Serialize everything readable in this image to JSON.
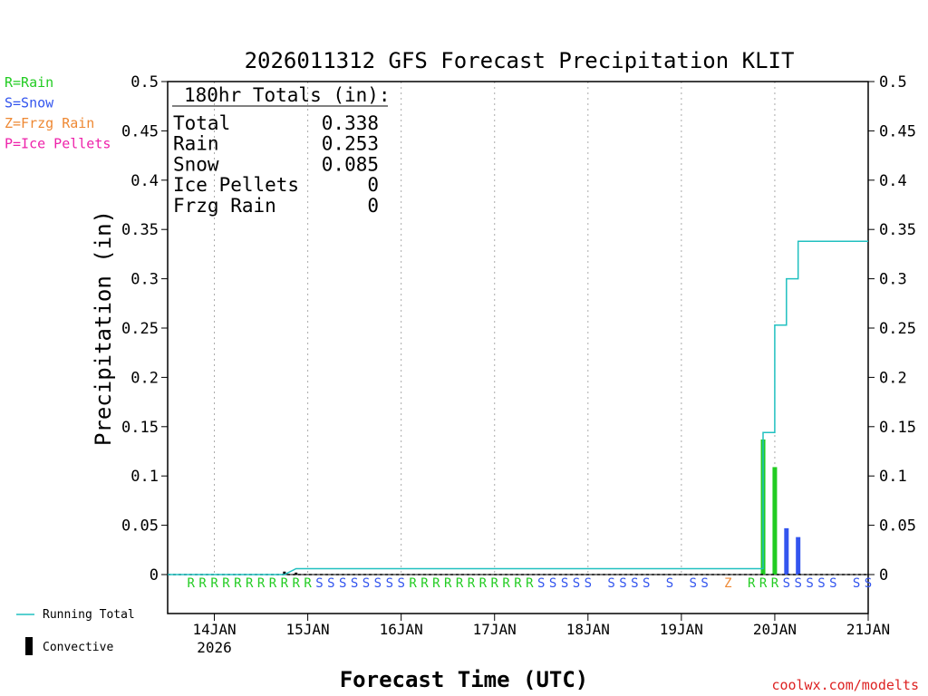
{
  "chart_data": {
    "type": "bar",
    "title": "2026011312 GFS Forecast Precipitation KLIT",
    "xlabel": "Forecast Time (UTC)",
    "ylabel": "Precipitation (in)",
    "ylim": [
      0,
      0.5
    ],
    "yticks": [
      "0",
      "0.05",
      "0.1",
      "0.15",
      "0.2",
      "0.25",
      "0.3",
      "0.35",
      "0.4",
      "0.45",
      "0.5"
    ],
    "xlim": [
      "2026-01-13T12",
      "2026-01-21T00"
    ],
    "xticks": [
      {
        "time": "2026-01-14T00",
        "label": "14JAN",
        "sublabel": "2026"
      },
      {
        "time": "2026-01-15T00",
        "label": "15JAN",
        "sublabel": ""
      },
      {
        "time": "2026-01-16T00",
        "label": "16JAN",
        "sublabel": ""
      },
      {
        "time": "2026-01-17T00",
        "label": "17JAN",
        "sublabel": ""
      },
      {
        "time": "2026-01-18T00",
        "label": "18JAN",
        "sublabel": ""
      },
      {
        "time": "2026-01-19T00",
        "label": "19JAN",
        "sublabel": ""
      },
      {
        "time": "2026-01-20T00",
        "label": "20JAN",
        "sublabel": ""
      },
      {
        "time": "2026-01-21T00",
        "label": "21JAN",
        "sublabel": ""
      }
    ],
    "grid": "vertical dotted at each day",
    "series": [
      {
        "name": "Running Total",
        "kind": "line",
        "color": "#20c0c0",
        "points": [
          {
            "time": "2026-01-13T12",
            "value": 0
          },
          {
            "time": "2026-01-14T18",
            "value": 0
          },
          {
            "time": "2026-01-14T21",
            "value": 0.006
          },
          {
            "time": "2026-01-19T21",
            "value": 0.006
          },
          {
            "time": "2026-01-19T21",
            "value": 0.144
          },
          {
            "time": "2026-01-20T00",
            "value": 0.144
          },
          {
            "time": "2026-01-20T00",
            "value": 0.253
          },
          {
            "time": "2026-01-20T03",
            "value": 0.253
          },
          {
            "time": "2026-01-20T03",
            "value": 0.3
          },
          {
            "time": "2026-01-20T06",
            "value": 0.3
          },
          {
            "time": "2026-01-20T06",
            "value": 0.338
          },
          {
            "time": "2026-01-21T00",
            "value": 0.338
          }
        ]
      },
      {
        "name": "Precipitation",
        "kind": "bar",
        "bars": [
          {
            "time": "2026-01-19T21",
            "value": 0.137,
            "ptype": "R"
          },
          {
            "time": "2026-01-20T00",
            "value": 0.109,
            "ptype": "R"
          },
          {
            "time": "2026-01-20T03",
            "value": 0.047,
            "ptype": "S"
          },
          {
            "time": "2026-01-20T06",
            "value": 0.038,
            "ptype": "S"
          }
        ]
      },
      {
        "name": "Convective",
        "kind": "bar",
        "color": "#000000",
        "bars": [
          {
            "time": "2026-01-14T18",
            "value": 0.003
          },
          {
            "time": "2026-01-14T21",
            "value": 0.002
          }
        ]
      }
    ],
    "ptype_colors": {
      "R": "#22cc22",
      "S": "#3355ee",
      "Z": "#ee8833",
      "P": "#ee22aa"
    },
    "ptype_markers": [
      {
        "t": "2026-01-13T18",
        "p": "R"
      },
      {
        "t": "2026-01-13T21",
        "p": "R"
      },
      {
        "t": "2026-01-14T00",
        "p": "R"
      },
      {
        "t": "2026-01-14T03",
        "p": "R"
      },
      {
        "t": "2026-01-14T06",
        "p": "R"
      },
      {
        "t": "2026-01-14T09",
        "p": "R"
      },
      {
        "t": "2026-01-14T12",
        "p": "R"
      },
      {
        "t": "2026-01-14T15",
        "p": "R"
      },
      {
        "t": "2026-01-14T18",
        "p": "R"
      },
      {
        "t": "2026-01-14T21",
        "p": "R"
      },
      {
        "t": "2026-01-15T00",
        "p": "R"
      },
      {
        "t": "2026-01-15T03",
        "p": "S"
      },
      {
        "t": "2026-01-15T06",
        "p": "S"
      },
      {
        "t": "2026-01-15T09",
        "p": "S"
      },
      {
        "t": "2026-01-15T12",
        "p": "S"
      },
      {
        "t": "2026-01-15T15",
        "p": "S"
      },
      {
        "t": "2026-01-15T18",
        "p": "S"
      },
      {
        "t": "2026-01-15T21",
        "p": "S"
      },
      {
        "t": "2026-01-16T00",
        "p": "S"
      },
      {
        "t": "2026-01-16T03",
        "p": "R"
      },
      {
        "t": "2026-01-16T06",
        "p": "R"
      },
      {
        "t": "2026-01-16T09",
        "p": "R"
      },
      {
        "t": "2026-01-16T12",
        "p": "R"
      },
      {
        "t": "2026-01-16T15",
        "p": "R"
      },
      {
        "t": "2026-01-16T18",
        "p": "R"
      },
      {
        "t": "2026-01-16T21",
        "p": "R"
      },
      {
        "t": "2026-01-17T00",
        "p": "R"
      },
      {
        "t": "2026-01-17T03",
        "p": "R"
      },
      {
        "t": "2026-01-17T06",
        "p": "R"
      },
      {
        "t": "2026-01-17T09",
        "p": "R"
      },
      {
        "t": "2026-01-17T12",
        "p": "S"
      },
      {
        "t": "2026-01-17T15",
        "p": "S"
      },
      {
        "t": "2026-01-17T18",
        "p": "S"
      },
      {
        "t": "2026-01-17T21",
        "p": "S"
      },
      {
        "t": "2026-01-18T00",
        "p": "S"
      },
      {
        "t": "2026-01-18T06",
        "p": "S"
      },
      {
        "t": "2026-01-18T09",
        "p": "S"
      },
      {
        "t": "2026-01-18T12",
        "p": "S"
      },
      {
        "t": "2026-01-18T15",
        "p": "S"
      },
      {
        "t": "2026-01-18T21",
        "p": "S"
      },
      {
        "t": "2026-01-19T03",
        "p": "S"
      },
      {
        "t": "2026-01-19T06",
        "p": "S"
      },
      {
        "t": "2026-01-19T12",
        "p": "Z"
      },
      {
        "t": "2026-01-19T18",
        "p": "R"
      },
      {
        "t": "2026-01-19T21",
        "p": "R"
      },
      {
        "t": "2026-01-20T00",
        "p": "R"
      },
      {
        "t": "2026-01-20T03",
        "p": "S"
      },
      {
        "t": "2026-01-20T06",
        "p": "S"
      },
      {
        "t": "2026-01-20T09",
        "p": "S"
      },
      {
        "t": "2026-01-20T12",
        "p": "S"
      },
      {
        "t": "2026-01-20T15",
        "p": "S"
      },
      {
        "t": "2026-01-20T21",
        "p": "S"
      },
      {
        "t": "2026-01-21T00",
        "p": "S"
      }
    ],
    "type_legend": [
      {
        "text": "R=Rain",
        "color": "#22cc22"
      },
      {
        "text": "S=Snow",
        "color": "#3355ee"
      },
      {
        "text": "Z=Frzg Rain",
        "color": "#ee8833"
      },
      {
        "text": "P=Ice Pellets",
        "color": "#ee22aa"
      }
    ],
    "totals": {
      "heading": "180hr Totals (in):",
      "rows": [
        {
          "label": "Total",
          "value": "0.338"
        },
        {
          "label": "Rain",
          "value": "0.253"
        },
        {
          "label": "Snow",
          "value": "0.085"
        },
        {
          "label": "Ice Pellets",
          "value": "0"
        },
        {
          "label": "Frzg Rain",
          "value": "0"
        }
      ]
    },
    "bottom_legend": [
      {
        "text": "Running Total",
        "kind": "line",
        "color": "#20c0c0"
      },
      {
        "text": "Convective",
        "kind": "bar",
        "color": "#000000"
      }
    ],
    "credit": {
      "text": "coolwx.com/modelts",
      "color": "#dd2222"
    }
  }
}
